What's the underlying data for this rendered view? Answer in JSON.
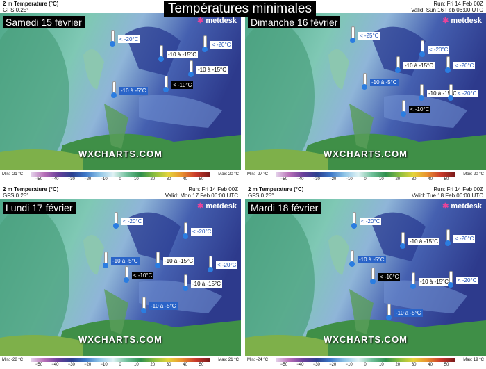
{
  "title": "Températures minimales",
  "colorbar_ticks": [
    "−50",
    "−40",
    "−30",
    "−20",
    "−10",
    "0",
    "10",
    "20",
    "30",
    "40",
    "50"
  ],
  "panels": [
    {
      "field": "2 m Temperature (°C)",
      "model": "GFS 0.25°",
      "day": "Samedi 15 février",
      "logo": "metdesk",
      "watermark": "WXCHARTS.COM",
      "min": "Min: -21 °C",
      "max": "Max: 20 °C",
      "labels": [
        "< -20°C",
        "-10 à -15°C",
        "< -20°C",
        "-10 à -15°C",
        "-10 à -5°C",
        "< -10°C"
      ]
    },
    {
      "field": "2 m Temperature (°C)",
      "model": "GFS 0.25°",
      "run": "Run: Fri 14 Feb 00Z",
      "valid": "Valid: Sun 16 Feb 06:00 UTC",
      "day": "Dimanche 16 février",
      "logo": "metdesk",
      "watermark": "WXCHARTS.COM",
      "min": "Min: -27 °C",
      "max": "Max: 20 °C",
      "labels": [
        "< -25°C",
        "< -20°C",
        "-10 à -15°C",
        "< -20°C",
        "-10 à -5°C",
        "-10 à -15°C",
        "< -20°C",
        "< -10°C"
      ]
    },
    {
      "field": "2 m Temperature (°C)",
      "model": "GFS 0.25°",
      "run": "Run: Fri 14 Feb 00Z",
      "valid": "Valid: Mon 17 Feb 06:00 UTC",
      "day": "Lundi 17 février",
      "logo": "metdesk",
      "watermark": "WXCHARTS.COM",
      "min": "Min: -28 °C",
      "max": "Max: 21 °C",
      "labels": [
        "< -20°C",
        "< -20°C",
        "-10 à -5°C",
        "-10 à -15°C",
        "< -20°C",
        "< -10°C",
        "-10 à -15°C",
        "-10 à -5°C"
      ]
    },
    {
      "field": "2 m Temperature (°C)",
      "model": "GFS 0.25°",
      "run": "Run: Fri 14 Feb 00Z",
      "valid": "Valid: Tue 18 Feb 06:00 UTC",
      "day": "Mardi 18 février",
      "logo": "metdesk",
      "watermark": "WXCHARTS.COM",
      "min": "Min: -24 °C",
      "max": "Max: 19 °C",
      "labels": [
        "< -20°C",
        "-10 à -15°C",
        "< -20°C",
        "-10 à -5°C",
        "< -10°C",
        "-10 à -15°C",
        "< -20°C",
        "-10 à -5°C"
      ]
    }
  ]
}
